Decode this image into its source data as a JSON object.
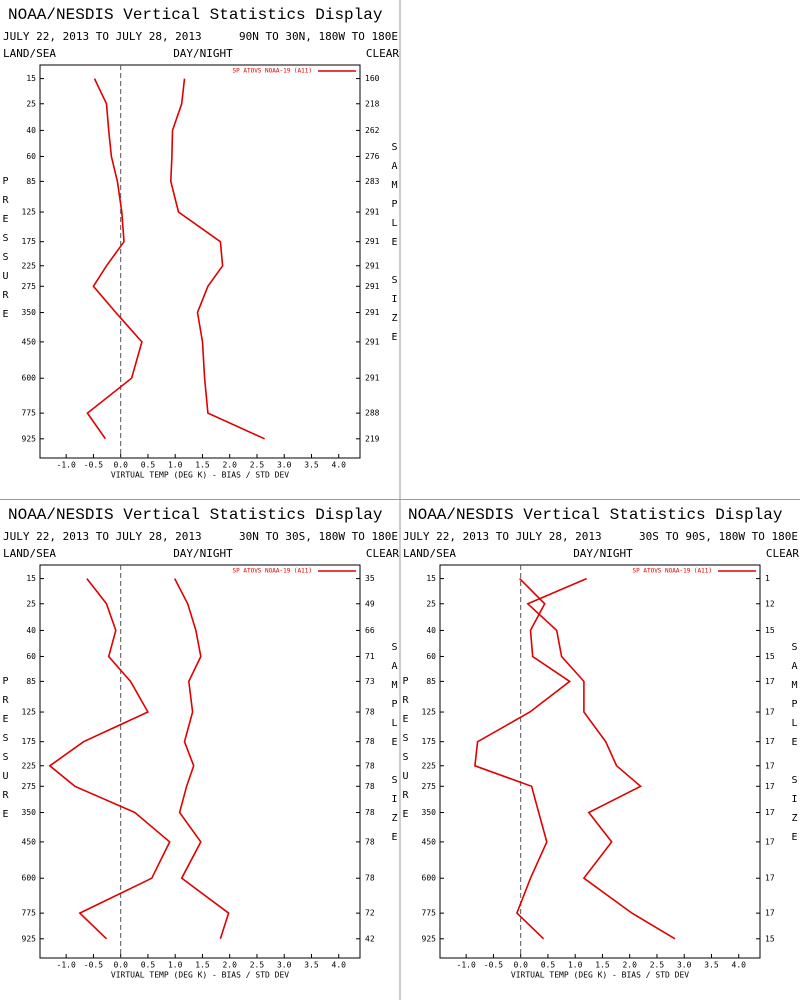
{
  "chart_data": [
    {
      "type": "line",
      "title": "NOAA/NESDIS Vertical Statistics Display",
      "subtitle": "JULY 22, 2013 TO JULY 28, 2013",
      "region": "90N TO 30N, 180W TO 180E",
      "land_sea": "LAND/SEA",
      "day_night": "DAY/NIGHT",
      "clear": "CLEAR",
      "ylabel": "PRESSURE",
      "y2label": "SAMPLE SIZE",
      "xlabel": "VIRTUAL TEMP (DEG K) - BIAS / STD DEV",
      "levels": [
        15,
        25,
        40,
        60,
        85,
        125,
        175,
        225,
        275,
        350,
        450,
        600,
        775,
        925
      ],
      "sample_sizes": [
        160,
        218,
        262,
        276,
        283,
        291,
        291,
        291,
        291,
        291,
        291,
        291,
        288,
        219
      ],
      "series": [
        {
          "name": "SP ATOVS NOAA-19 (A11)",
          "color": "#e00000",
          "bias": [
            -0.48,
            -0.26,
            -0.22,
            -0.17,
            -0.06,
            0.02,
            0.06,
            -0.26,
            -0.5,
            -0.09,
            0.39,
            0.2,
            -0.61,
            -0.28
          ],
          "std_dev": [
            1.17,
            1.12,
            0.95,
            0.94,
            0.92,
            1.06,
            1.83,
            1.87,
            1.6,
            1.41,
            1.5,
            1.54,
            1.6,
            2.64
          ]
        }
      ],
      "xlim": [
        -1.48,
        4.39
      ],
      "ylim": [
        11,
        1050
      ],
      "yscale": "power",
      "yexponent": 0.286,
      "xticks": [
        {
          "value": -1,
          "label": "-1.0"
        },
        -0.5,
        {
          "value": 0,
          "label": "0.0"
        },
        0.5,
        {
          "value": 1,
          "label": "1.0"
        },
        1.5,
        {
          "value": 2,
          "label": "2.0"
        },
        2.5,
        {
          "value": 3,
          "label": "3.0"
        },
        3.5,
        {
          "value": 4,
          "label": "4.0"
        }
      ]
    },
    {
      "type": "line",
      "title": "NOAA/NESDIS Vertical Statistics Display",
      "subtitle": "JULY 22, 2013 TO JULY 28, 2013",
      "region": "30N TO 30S, 180W TO 180E",
      "land_sea": "LAND/SEA",
      "day_night": "DAY/NIGHT",
      "clear": "CLEAR",
      "ylabel": "PRESSURE",
      "y2label": "SAMPLE SIZE",
      "xlabel": "VIRTUAL TEMP (DEG K) - BIAS / STD DEV",
      "levels": [
        15,
        25,
        40,
        60,
        85,
        125,
        175,
        225,
        275,
        350,
        450,
        600,
        775,
        925
      ],
      "sample_sizes": [
        35,
        49,
        66,
        71,
        73,
        78,
        78,
        78,
        78,
        78,
        78,
        78,
        72,
        42
      ],
      "series": [
        {
          "name": "SP ATOVS NOAA-19 (A11)",
          "color": "#e00000",
          "bias": [
            -0.62,
            -0.26,
            -0.09,
            -0.22,
            0.18,
            0.5,
            -0.68,
            -1.3,
            -0.84,
            0.26,
            0.9,
            0.57,
            -0.75,
            -0.26
          ],
          "std_dev": [
            0.99,
            1.23,
            1.38,
            1.47,
            1.25,
            1.32,
            1.17,
            1.34,
            1.21,
            1.08,
            1.47,
            1.12,
            1.98,
            1.83
          ]
        }
      ],
      "xlim": [
        -1.48,
        4.39
      ],
      "ylim": [
        11,
        1050
      ],
      "yscale": "power",
      "yexponent": 0.286,
      "xticks": [
        {
          "value": -1,
          "label": "-1.0"
        },
        -0.5,
        {
          "value": 0,
          "label": "0.0"
        },
        0.5,
        {
          "value": 1,
          "label": "1.0"
        },
        1.5,
        {
          "value": 2,
          "label": "2.0"
        },
        2.5,
        {
          "value": 3,
          "label": "3.0"
        },
        3.5,
        {
          "value": 4,
          "label": "4.0"
        }
      ]
    },
    {
      "type": "line",
      "title": "NOAA/NESDIS Vertical Statistics Display",
      "subtitle": "JULY 22, 2013 TO JULY 28, 2013",
      "region": "30S TO 90S, 180W TO 180E",
      "land_sea": "LAND/SEA",
      "day_night": "DAY/NIGHT",
      "clear": "CLEAR",
      "ylabel": "PRESSURE",
      "y2label": "SAMPLE SIZE",
      "xlabel": "VIRTUAL TEMP (DEG K) - BIAS / STD DEV",
      "levels": [
        15,
        25,
        40,
        60,
        85,
        125,
        175,
        225,
        275,
        350,
        450,
        600,
        775,
        925
      ],
      "sample_sizes": [
        1,
        12,
        15,
        15,
        17,
        17,
        17,
        17,
        17,
        17,
        17,
        17,
        17,
        15
      ],
      "series": [
        {
          "name": "SP ATOVS NOAA-19 (A11)",
          "color": "#e00000",
          "bias": [
            -0.02,
            0.44,
            0.18,
            0.22,
            0.9,
            0.17,
            -0.79,
            -0.84,
            0.2,
            0.33,
            0.48,
            0.18,
            -0.07,
            0.42
          ],
          "std_dev": [
            1.21,
            0.13,
            0.66,
            0.75,
            1.16,
            1.16,
            1.56,
            1.76,
            2.2,
            1.25,
            1.67,
            1.16,
            2.04,
            2.83
          ]
        }
      ],
      "xlim": [
        -1.48,
        4.39
      ],
      "ylim": [
        11,
        1050
      ],
      "yscale": "power",
      "yexponent": 0.286,
      "xticks": [
        {
          "value": -1,
          "label": "-1.0"
        },
        -0.5,
        {
          "value": 0,
          "label": "0.0"
        },
        0.5,
        {
          "value": 1,
          "label": "1.0"
        },
        1.5,
        {
          "value": 2,
          "label": "2.0"
        },
        2.5,
        {
          "value": 3,
          "label": "3.0"
        },
        3.5,
        {
          "value": 4,
          "label": "4.0"
        }
      ]
    }
  ]
}
